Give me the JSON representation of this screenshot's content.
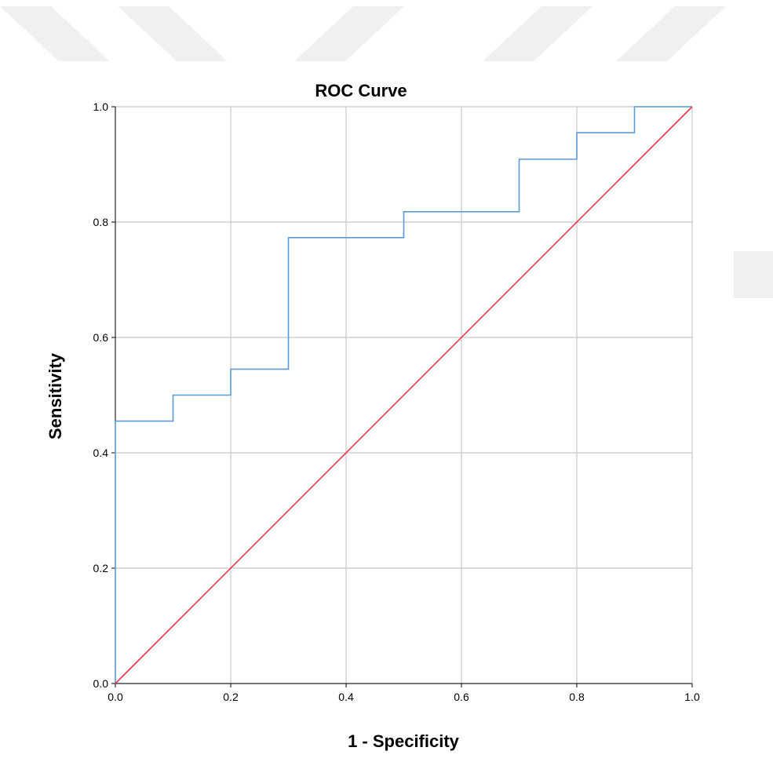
{
  "chart_data": {
    "type": "line",
    "title": "ROC Curve",
    "xlabel": "1 - Specificity",
    "ylabel": "Sensitivity",
    "xlim": [
      0.0,
      1.0
    ],
    "ylim": [
      0.0,
      1.0
    ],
    "x_ticks": [
      "0.0",
      "0.2",
      "0.4",
      "0.6",
      "0.8",
      "1.0"
    ],
    "y_ticks": [
      "0.0",
      "0.2",
      "0.4",
      "0.6",
      "0.8",
      "1.0"
    ],
    "grid": true,
    "series": [
      {
        "role": "roc-curve",
        "color": "#5b9bd5",
        "step": true,
        "points": [
          [
            0.0,
            0.0
          ],
          [
            0.0,
            0.455
          ],
          [
            0.1,
            0.455
          ],
          [
            0.1,
            0.5
          ],
          [
            0.2,
            0.5
          ],
          [
            0.2,
            0.545
          ],
          [
            0.3,
            0.545
          ],
          [
            0.3,
            0.773
          ],
          [
            0.5,
            0.773
          ],
          [
            0.5,
            0.818
          ],
          [
            0.7,
            0.818
          ],
          [
            0.7,
            0.909
          ],
          [
            0.8,
            0.909
          ],
          [
            0.8,
            0.955
          ],
          [
            0.9,
            0.955
          ],
          [
            0.9,
            1.0
          ],
          [
            1.0,
            1.0
          ]
        ]
      },
      {
        "role": "reference-line",
        "color": "#e8354f",
        "step": false,
        "points": [
          [
            0.0,
            0.0
          ],
          [
            1.0,
            1.0
          ]
        ]
      }
    ]
  },
  "colors": {
    "grid": "#c8c8c8",
    "axis": "#000000",
    "watermark": "#f0f0f0"
  }
}
